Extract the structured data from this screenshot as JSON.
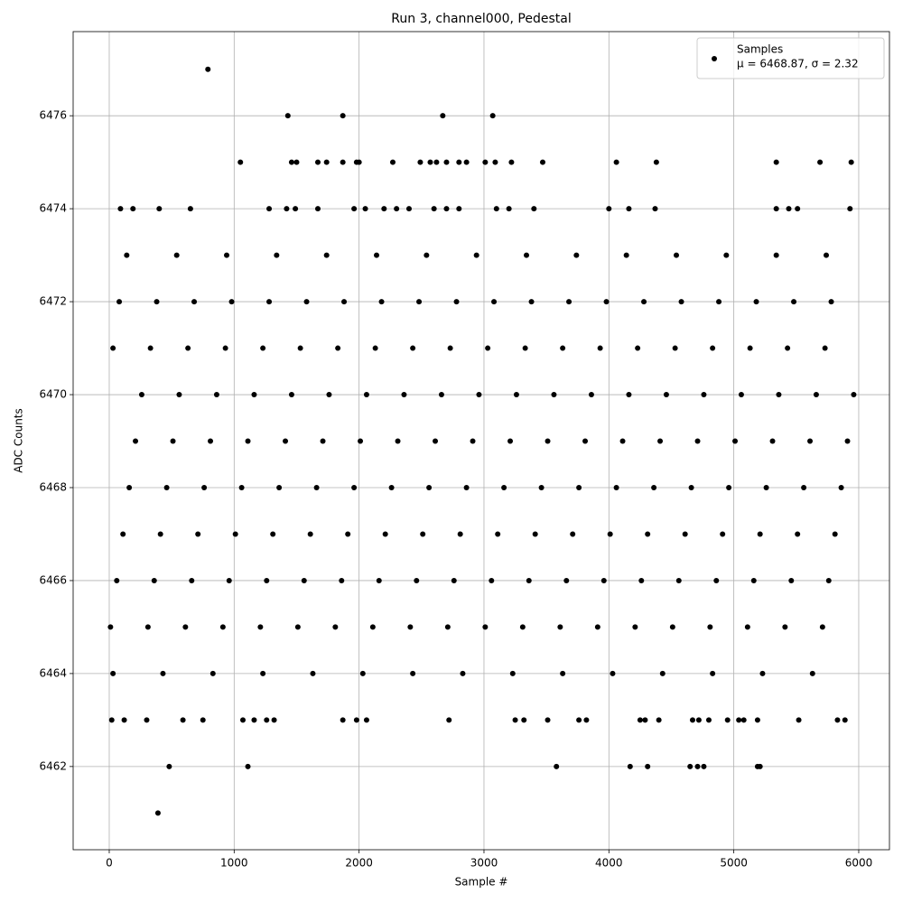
{
  "chart_data": {
    "type": "scatter",
    "title": "Run 3, channel000, Pedestal",
    "x_label": "Sample #",
    "y_label": "ADC Counts",
    "legend_note": "μ = 6468.87, σ = 2.32",
    "legend_position": "upper right",
    "grid": true,
    "xlim": [
      -289,
      6246
    ],
    "ylim": [
      6460.21,
      6477.81
    ],
    "xticks": [
      0,
      1000,
      2000,
      3000,
      4000,
      5000,
      6000
    ],
    "yticks": [
      6462,
      6464,
      6466,
      6468,
      6470,
      6472,
      6474,
      6476
    ],
    "series": [
      {
        "name": "Samples",
        "color": "#000000",
        "x": [
          790,
          1430,
          1870,
          2670,
          3070,
          390,
          480,
          1110,
          3580,
          4170,
          4310,
          4650,
          4710,
          4760,
          5190,
          5210,
          1050,
          1460,
          1500,
          1670,
          1740,
          1870,
          1980,
          2000,
          2270,
          2490,
          2570,
          2620,
          2700,
          2800,
          2860,
          3010,
          3090,
          3220,
          3470,
          4060,
          4380,
          5340,
          5690,
          5940,
          90,
          190,
          400,
          650,
          1280,
          1420,
          1490,
          1670,
          1960,
          2050,
          2200,
          2300,
          2400,
          2600,
          2700,
          2800,
          3100,
          3200,
          3400,
          4000,
          4160,
          4370,
          5340,
          5440,
          5510,
          5930,
          20,
          120,
          300,
          590,
          750,
          1070,
          1160,
          1260,
          1320,
          1870,
          1980,
          2060,
          2720,
          3250,
          3320,
          3510,
          3760,
          3820,
          4250,
          4290,
          4400,
          4670,
          4720,
          4800,
          4950,
          5040,
          5080,
          5190,
          5520,
          5830,
          5890,
          30,
          430,
          830,
          1230,
          1630,
          2030,
          2430,
          2830,
          3230,
          3630,
          4030,
          4430,
          4830,
          5230,
          5630,
          140,
          540,
          940,
          1340,
          1740,
          2140,
          2540,
          2940,
          3340,
          3740,
          4140,
          4540,
          4940,
          5340,
          5740,
          10,
          310,
          610,
          910,
          1210,
          1510,
          1810,
          2110,
          2410,
          2710,
          3010,
          3310,
          3610,
          3910,
          4210,
          4510,
          4810,
          5110,
          5410,
          5710,
          60,
          360,
          660,
          960,
          1260,
          1560,
          1860,
          2160,
          2460,
          2760,
          3060,
          3360,
          3660,
          3960,
          4260,
          4560,
          4860,
          5160,
          5460,
          5760,
          110,
          410,
          710,
          1010,
          1310,
          1610,
          1910,
          2210,
          2510,
          2810,
          3110,
          3410,
          3710,
          4010,
          4310,
          4610,
          4910,
          5210,
          5510,
          5810,
          160,
          460,
          760,
          1060,
          1360,
          1660,
          1960,
          2260,
          2560,
          2860,
          3160,
          3460,
          3760,
          4060,
          4360,
          4660,
          4960,
          5260,
          5560,
          5860,
          210,
          510,
          810,
          1110,
          1410,
          1710,
          2010,
          2310,
          2610,
          2910,
          3210,
          3510,
          3810,
          4110,
          4410,
          4710,
          5010,
          5310,
          5610,
          5910,
          260,
          560,
          860,
          1160,
          1460,
          1760,
          2060,
          2360,
          2660,
          2960,
          3260,
          3560,
          3860,
          4160,
          4460,
          4760,
          5060,
          5360,
          5660,
          5960,
          30,
          330,
          630,
          930,
          1230,
          1530,
          1830,
          2130,
          2430,
          2730,
          3030,
          3330,
          3630,
          3930,
          4230,
          4530,
          4830,
          5130,
          5430,
          5730,
          80,
          380,
          680,
          980,
          1280,
          1580,
          1880,
          2180,
          2480,
          2780,
          3080,
          3380,
          3680,
          3980,
          4280,
          4580,
          4880,
          5180,
          5480,
          5780
        ],
        "values": [
          6477,
          6476,
          6476,
          6476,
          6476,
          6461,
          6462,
          6462,
          6462,
          6462,
          6462,
          6462,
          6462,
          6462,
          6462,
          6462,
          6475,
          6475,
          6475,
          6475,
          6475,
          6475,
          6475,
          6475,
          6475,
          6475,
          6475,
          6475,
          6475,
          6475,
          6475,
          6475,
          6475,
          6475,
          6475,
          6475,
          6475,
          6475,
          6475,
          6475,
          6474,
          6474,
          6474,
          6474,
          6474,
          6474,
          6474,
          6474,
          6474,
          6474,
          6474,
          6474,
          6474,
          6474,
          6474,
          6474,
          6474,
          6474,
          6474,
          6474,
          6474,
          6474,
          6474,
          6474,
          6474,
          6474,
          6463,
          6463,
          6463,
          6463,
          6463,
          6463,
          6463,
          6463,
          6463,
          6463,
          6463,
          6463,
          6463,
          6463,
          6463,
          6463,
          6463,
          6463,
          6463,
          6463,
          6463,
          6463,
          6463,
          6463,
          6463,
          6463,
          6463,
          6463,
          6463,
          6463,
          6463,
          6464,
          6464,
          6464,
          6464,
          6464,
          6464,
          6464,
          6464,
          6464,
          6464,
          6464,
          6464,
          6464,
          6464,
          6464,
          6473,
          6473,
          6473,
          6473,
          6473,
          6473,
          6473,
          6473,
          6473,
          6473,
          6473,
          6473,
          6473,
          6473,
          6473,
          6465,
          6465,
          6465,
          6465,
          6465,
          6465,
          6465,
          6465,
          6465,
          6465,
          6465,
          6465,
          6465,
          6465,
          6465,
          6465,
          6465,
          6465,
          6465,
          6465,
          6466,
          6466,
          6466,
          6466,
          6466,
          6466,
          6466,
          6466,
          6466,
          6466,
          6466,
          6466,
          6466,
          6466,
          6466,
          6466,
          6466,
          6466,
          6466,
          6466,
          6467,
          6467,
          6467,
          6467,
          6467,
          6467,
          6467,
          6467,
          6467,
          6467,
          6467,
          6467,
          6467,
          6467,
          6467,
          6467,
          6467,
          6467,
          6467,
          6467,
          6468,
          6468,
          6468,
          6468,
          6468,
          6468,
          6468,
          6468,
          6468,
          6468,
          6468,
          6468,
          6468,
          6468,
          6468,
          6468,
          6468,
          6468,
          6468,
          6468,
          6469,
          6469,
          6469,
          6469,
          6469,
          6469,
          6469,
          6469,
          6469,
          6469,
          6469,
          6469,
          6469,
          6469,
          6469,
          6469,
          6469,
          6469,
          6469,
          6469,
          6470,
          6470,
          6470,
          6470,
          6470,
          6470,
          6470,
          6470,
          6470,
          6470,
          6470,
          6470,
          6470,
          6470,
          6470,
          6470,
          6470,
          6470,
          6470,
          6470,
          6471,
          6471,
          6471,
          6471,
          6471,
          6471,
          6471,
          6471,
          6471,
          6471,
          6471,
          6471,
          6471,
          6471,
          6471,
          6471,
          6471,
          6471,
          6471,
          6471,
          6472,
          6472,
          6472,
          6472,
          6472,
          6472,
          6472,
          6472,
          6472,
          6472,
          6472,
          6472,
          6472,
          6472,
          6472,
          6472,
          6472,
          6472,
          6472,
          6472
        ]
      }
    ]
  }
}
